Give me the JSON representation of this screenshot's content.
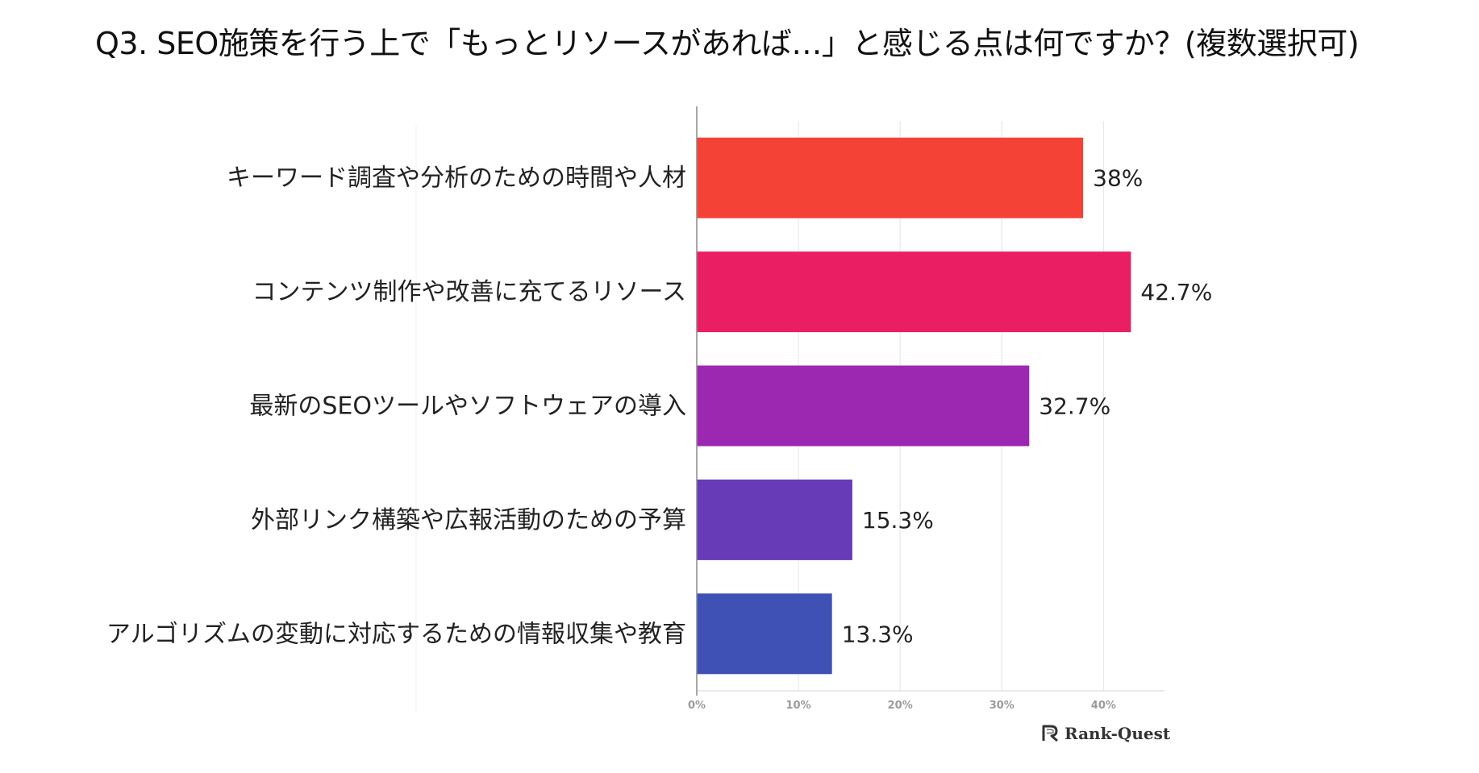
{
  "title": "Q3. SEO施策を行う上で「もっとリソースがあれば…」と感じる点は何ですか？(複数選択可)",
  "chart_data": {
    "type": "bar",
    "orientation": "horizontal",
    "title": "Q3. SEO施策を行う上で「もっとリソースがあれば…」と感じる点は何ですか？(複数選択可)",
    "categories": [
      "キーワード調査や分析のための時間や人材",
      "コンテンツ制作や改善に充てるリソース",
      "最新のSEOツールやソフトウェアの導入",
      "外部リンク構築や広報活動のための予算",
      "アルゴリズムの変動に対応するための情報収集や教育"
    ],
    "values": [
      38,
      42.7,
      32.7,
      15.3,
      13.3
    ],
    "value_labels": [
      "38%",
      "42.7%",
      "32.7%",
      "15.3%",
      "13.3%"
    ],
    "colors": [
      "#F44336",
      "#E91E63",
      "#9C27B0",
      "#673AB7",
      "#3F51B5"
    ],
    "xlabel": "",
    "ylabel": "",
    "xlim": [
      0,
      46
    ],
    "xticks": [
      0,
      10,
      20,
      30,
      40
    ],
    "xtick_labels": [
      "0%",
      "10%",
      "20%",
      "30%",
      "40%"
    ],
    "grid": true,
    "legend": "none"
  },
  "logo": {
    "text": "Rank-Quest"
  }
}
